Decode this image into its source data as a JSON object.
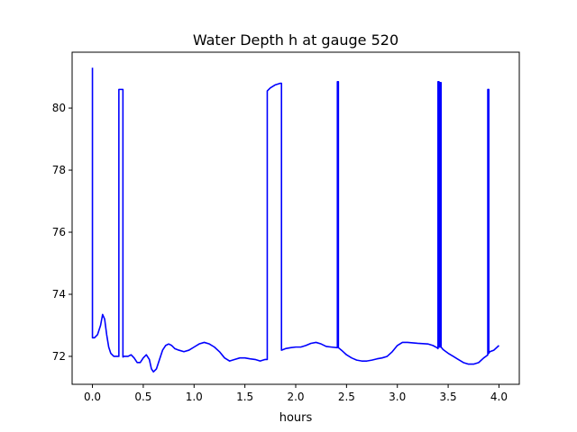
{
  "chart_data": {
    "type": "line",
    "title": "Water Depth h at gauge 520",
    "xlabel": "hours",
    "ylabel": "",
    "xlim": [
      -0.2,
      4.2
    ],
    "ylim": [
      71.1,
      81.8
    ],
    "x_ticks": [
      0.0,
      0.5,
      1.0,
      1.5,
      2.0,
      2.5,
      3.0,
      3.5,
      4.0
    ],
    "x_tick_labels": [
      "0.0",
      "0.5",
      "1.0",
      "1.5",
      "2.0",
      "2.5",
      "3.0",
      "3.5",
      "4.0"
    ],
    "y_ticks": [
      72,
      74,
      76,
      78,
      80
    ],
    "y_tick_labels": [
      "72",
      "74",
      "76",
      "78",
      "80"
    ],
    "grid": false,
    "legend": "none",
    "series": [
      {
        "color": "#0000ff",
        "x": [
          0.0,
          0.0,
          0.01,
          0.02,
          0.05,
          0.08,
          0.1,
          0.12,
          0.14,
          0.16,
          0.18,
          0.21,
          0.24,
          0.26,
          0.26,
          0.3,
          0.3,
          0.31,
          0.33,
          0.35,
          0.38,
          0.41,
          0.44,
          0.47,
          0.5,
          0.53,
          0.56,
          0.58,
          0.6,
          0.63,
          0.66,
          0.69,
          0.72,
          0.75,
          0.78,
          0.81,
          0.85,
          0.9,
          0.95,
          1.0,
          1.05,
          1.1,
          1.15,
          1.2,
          1.25,
          1.3,
          1.35,
          1.4,
          1.45,
          1.5,
          1.55,
          1.6,
          1.65,
          1.7,
          1.72,
          1.72,
          1.75,
          1.8,
          1.85,
          1.86,
          1.86,
          1.9,
          1.95,
          2.0,
          2.05,
          2.1,
          2.15,
          2.2,
          2.25,
          2.3,
          2.35,
          2.41,
          2.41,
          2.42,
          2.42,
          2.45,
          2.5,
          2.55,
          2.6,
          2.65,
          2.7,
          2.75,
          2.8,
          2.85,
          2.9,
          2.95,
          3.0,
          3.05,
          3.1,
          3.2,
          3.3,
          3.35,
          3.39,
          3.4,
          3.4,
          3.41,
          3.41,
          3.42,
          3.42,
          3.43,
          3.43,
          3.45,
          3.5,
          3.55,
          3.6,
          3.65,
          3.7,
          3.75,
          3.8,
          3.85,
          3.88,
          3.89,
          3.89,
          3.9,
          3.9,
          3.91,
          3.95,
          4.0
        ],
        "y": [
          81.3,
          72.6,
          72.6,
          72.6,
          72.7,
          73.0,
          73.35,
          73.2,
          72.7,
          72.3,
          72.1,
          72.0,
          72.0,
          72.0,
          80.6,
          80.6,
          71.98,
          72.0,
          72.0,
          72.0,
          72.05,
          71.95,
          71.8,
          71.8,
          71.95,
          72.05,
          71.9,
          71.6,
          71.5,
          71.6,
          71.9,
          72.2,
          72.35,
          72.4,
          72.35,
          72.25,
          72.2,
          72.15,
          72.2,
          72.3,
          72.4,
          72.45,
          72.4,
          72.3,
          72.15,
          71.95,
          71.85,
          71.9,
          71.95,
          71.95,
          71.92,
          71.9,
          71.85,
          71.9,
          71.9,
          80.55,
          80.65,
          80.75,
          80.8,
          80.8,
          72.2,
          72.25,
          72.28,
          72.3,
          72.3,
          72.35,
          72.42,
          72.45,
          72.4,
          72.32,
          72.3,
          72.28,
          80.85,
          80.85,
          72.28,
          72.2,
          72.05,
          71.95,
          71.88,
          71.85,
          71.85,
          71.88,
          71.92,
          71.95,
          72.0,
          72.15,
          72.35,
          72.45,
          72.45,
          72.42,
          72.4,
          72.35,
          72.28,
          72.25,
          80.85,
          80.85,
          72.3,
          72.3,
          80.82,
          80.82,
          72.3,
          72.22,
          72.1,
          72.0,
          71.9,
          71.8,
          71.75,
          71.75,
          71.8,
          71.95,
          72.02,
          72.05,
          80.6,
          80.6,
          72.1,
          72.15,
          72.2,
          72.35
        ]
      }
    ]
  }
}
